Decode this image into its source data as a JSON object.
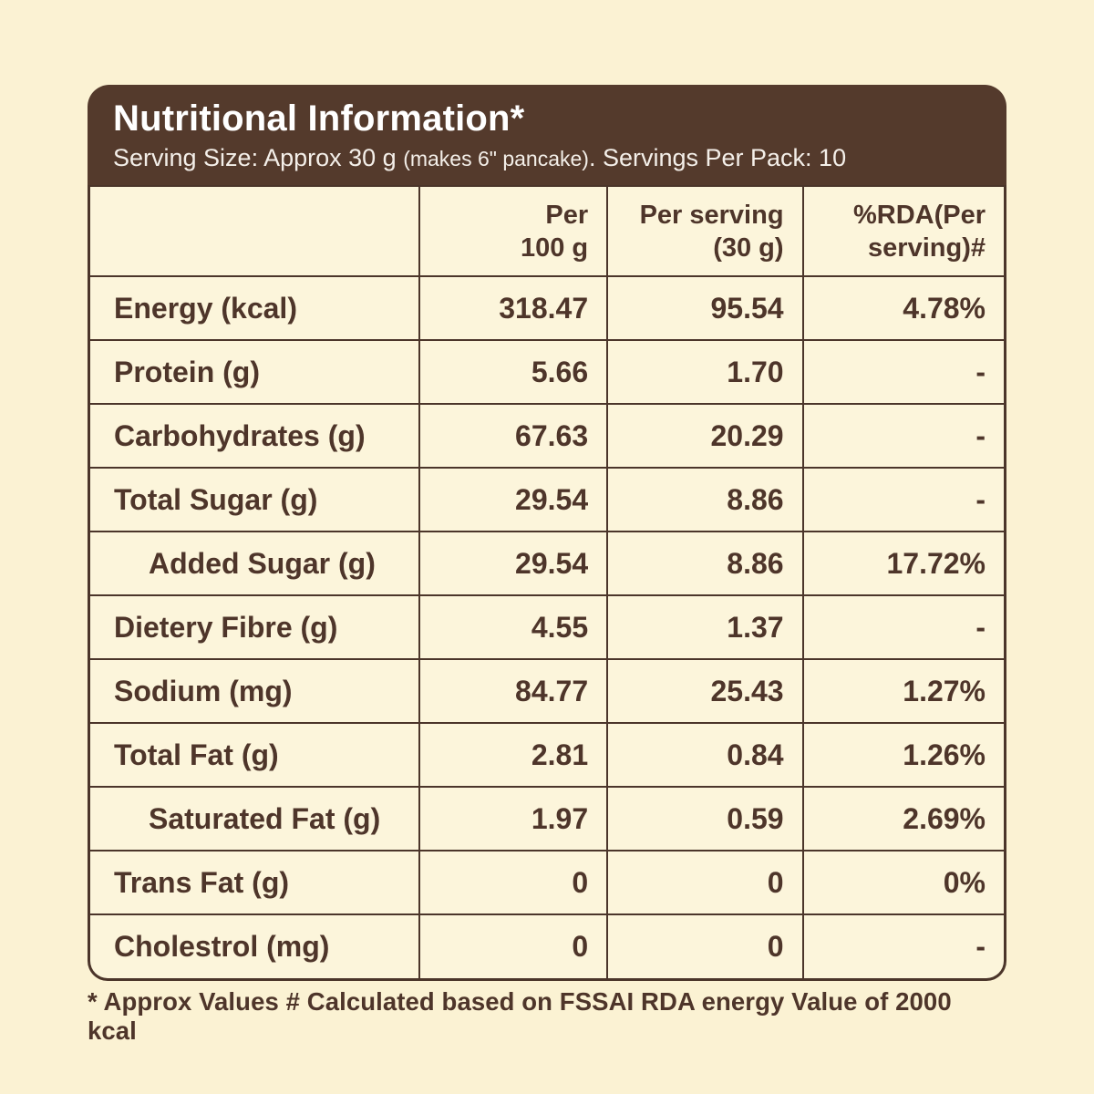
{
  "colors": {
    "page_background": "#FBF2D3",
    "header_background": "#543A2C",
    "table_background": "#FCF5DB",
    "border": "#4B352A",
    "text": "#4E352A",
    "header_text": "#FFFFFF"
  },
  "header": {
    "title": "Nutritional Information*",
    "serving_main": "Serving Size: Approx 30 g ",
    "serving_note": "(makes 6\" pancake)",
    "serving_tail": ". Servings Per Pack: 10"
  },
  "table": {
    "columns": {
      "nutrient": "",
      "per_100g": "Per\n100 g",
      "per_serving": "Per serving\n(30 g)",
      "rda": "%RDA(Per\nserving)#"
    },
    "rows": [
      {
        "label": "Energy (kcal)",
        "per100": "318.47",
        "perServing": "95.54",
        "rda": "4.78%"
      },
      {
        "label": "Protein (g)",
        "per100": "5.66",
        "perServing": "1.70",
        "rda": "-"
      },
      {
        "label": "Carbohydrates (g)",
        "per100": "67.63",
        "perServing": "20.29",
        "rda": "-"
      },
      {
        "label": "Total Sugar (g)",
        "per100": "29.54",
        "perServing": "8.86",
        "rda": "-"
      },
      {
        "label": "Added Sugar (g)",
        "per100": "29.54",
        "perServing": "8.86",
        "rda": "17.72%"
      },
      {
        "label": "Dietery Fibre (g)",
        "per100": "4.55",
        "perServing": "1.37",
        "rda": "-"
      },
      {
        "label": "Sodium (mg)",
        "per100": "84.77",
        "perServing": "25.43",
        "rda": "1.27%"
      },
      {
        "label": "Total Fat (g)",
        "per100": "2.81",
        "perServing": "0.84",
        "rda": "1.26%"
      },
      {
        "label": "Saturated Fat (g)",
        "per100": "1.97",
        "perServing": "0.59",
        "rda": "2.69%"
      },
      {
        "label": "Trans Fat (g)",
        "per100": "0",
        "perServing": "0",
        "rda": "0%"
      },
      {
        "label": "Cholestrol (mg)",
        "per100": "0",
        "perServing": "0",
        "rda": "-"
      }
    ]
  },
  "footnote": "* Approx Values # Calculated based on FSSAI RDA energy Value of 2000 kcal"
}
